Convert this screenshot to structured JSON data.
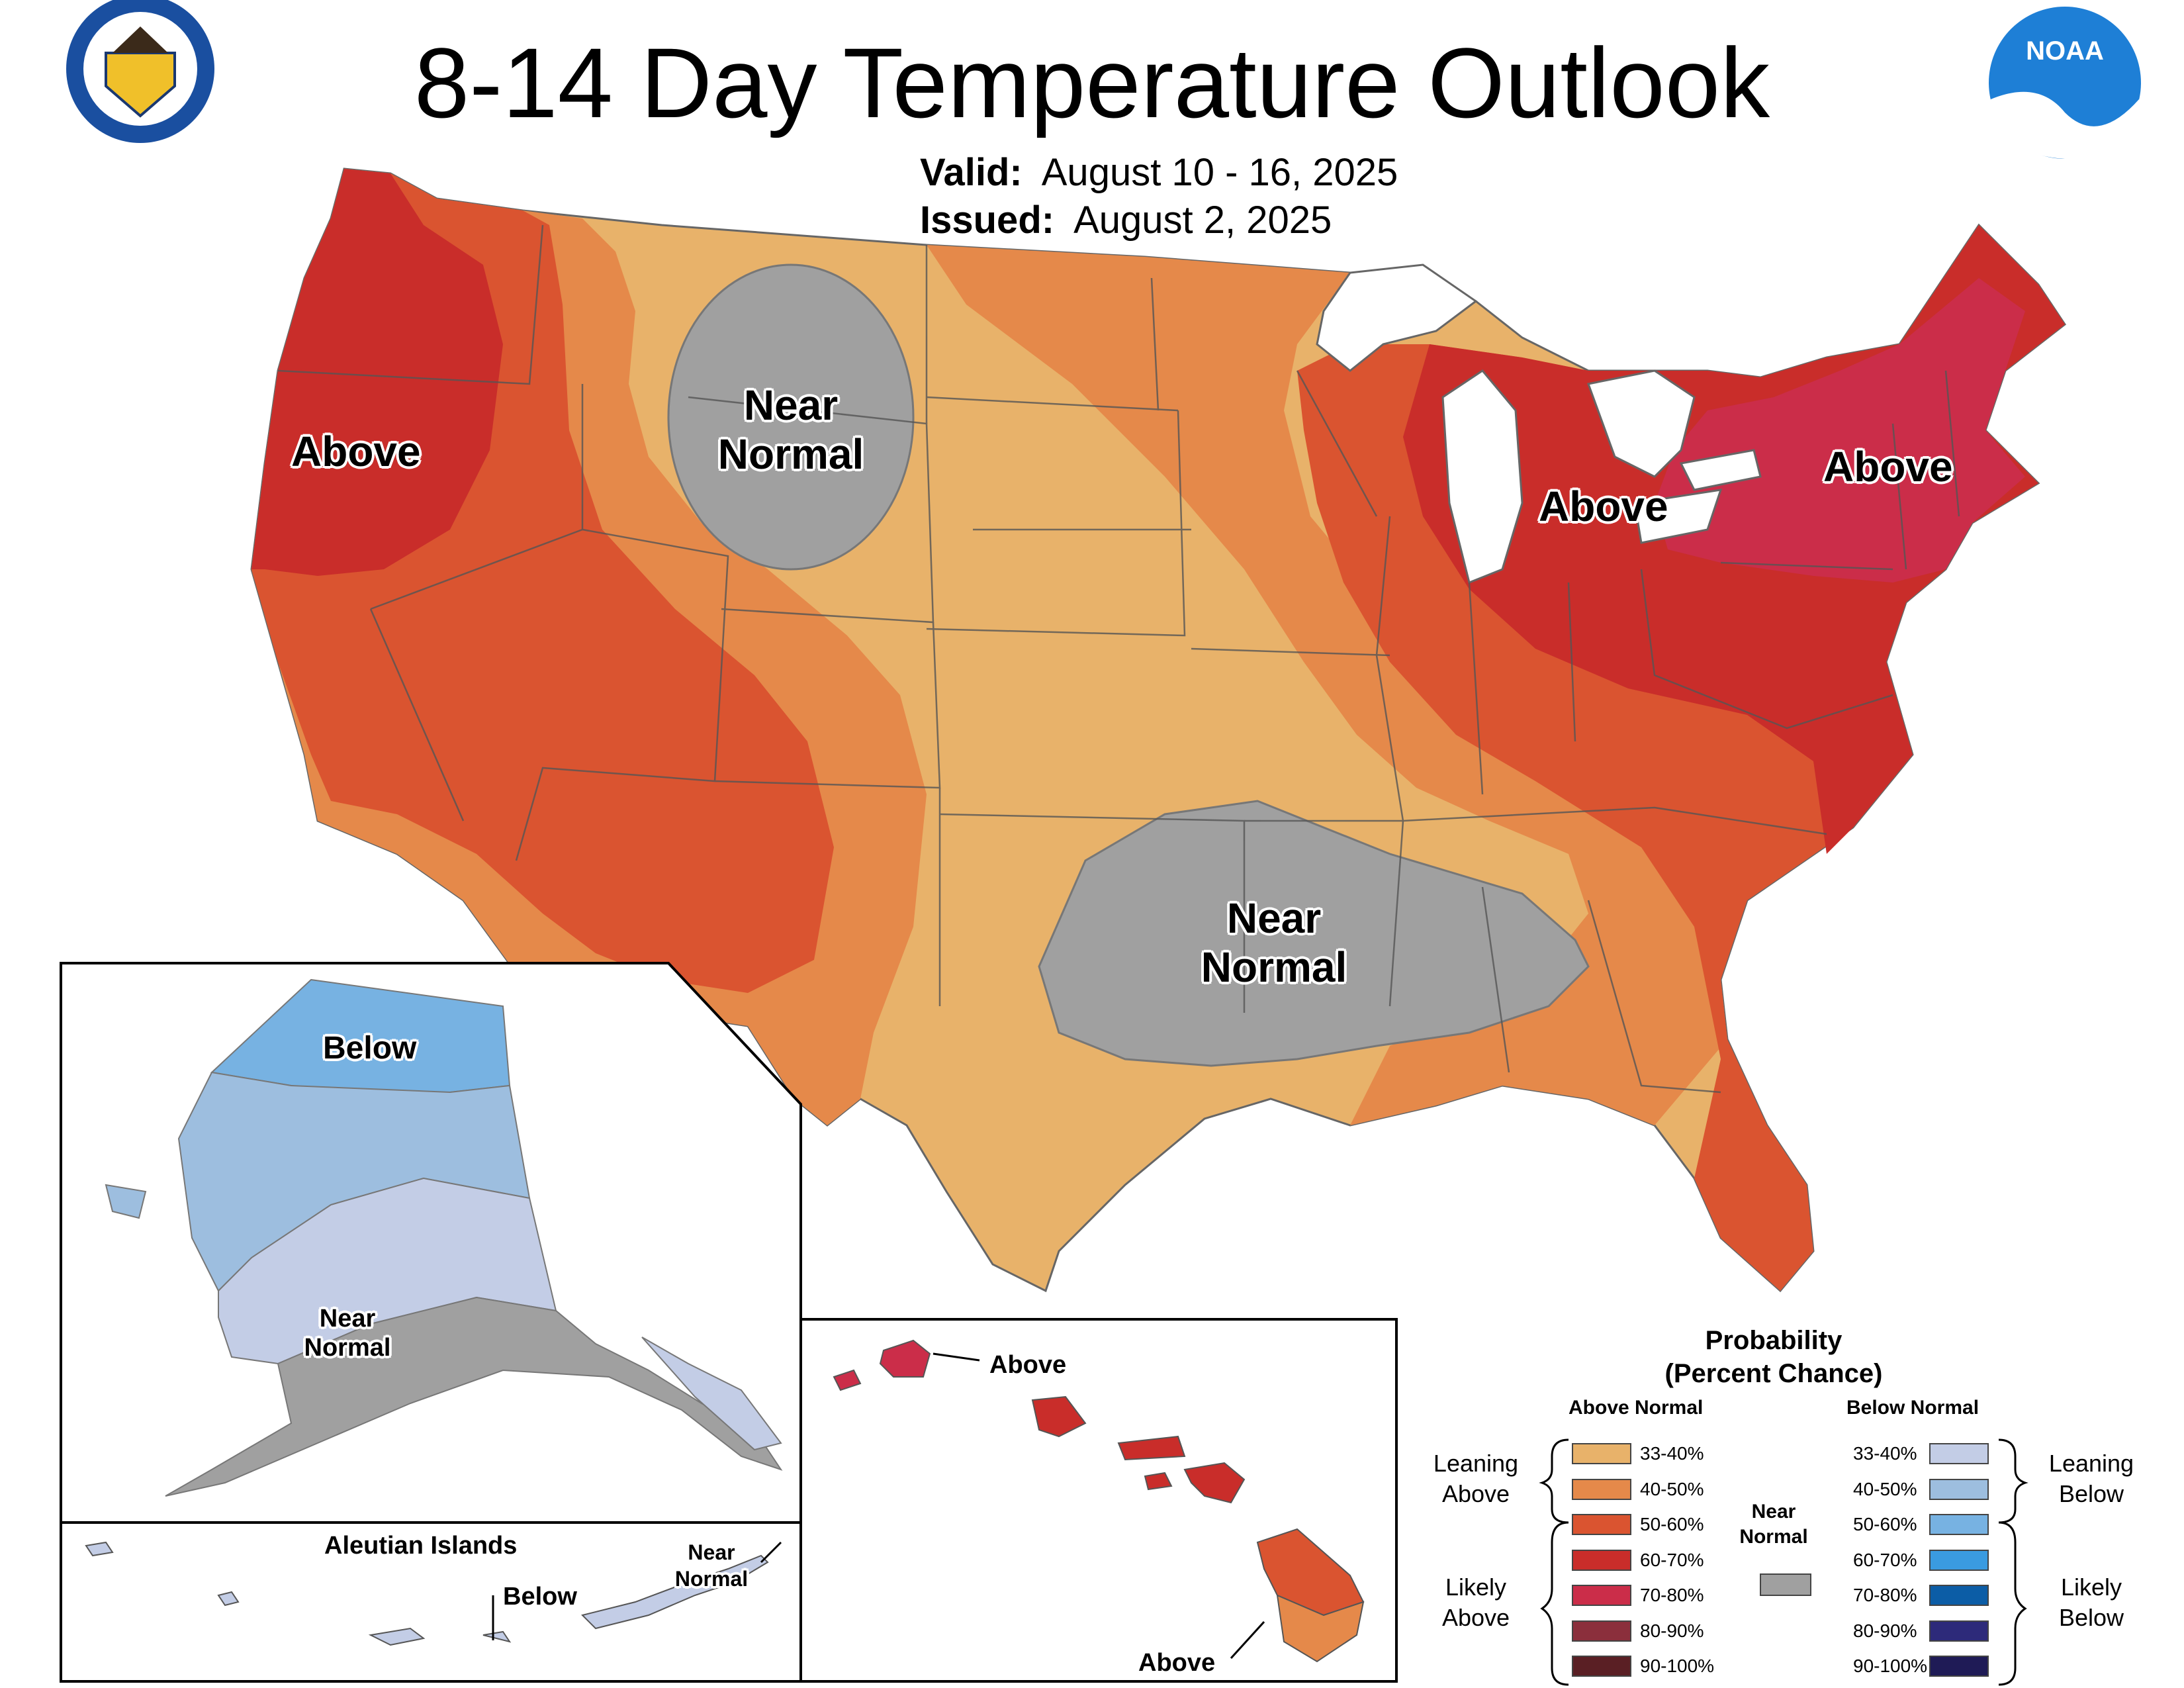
{
  "title": "8-14 Day Temperature Outlook",
  "valid_label": "Valid:",
  "valid_dates": "August 10 - 16, 2025",
  "issued_label": "Issued:",
  "issued_date": "August 2, 2025",
  "logos": {
    "left": "department-of-commerce-seal",
    "right": "noaa-logo"
  },
  "map_labels": {
    "west_above": "Above",
    "mountain_near": [
      "Near",
      "Normal"
    ],
    "south_near": [
      "Near",
      "Normal"
    ],
    "michigan_above": "Above",
    "northeast_above": "Above",
    "alaska_below": "Below",
    "alaska_near": [
      "Near",
      "Normal"
    ],
    "aleutian_title": "Aleutian Islands",
    "aleutian_below": "Below",
    "aleutian_near": [
      "Near",
      "Normal"
    ],
    "hawaii_above_top": "Above",
    "hawaii_above_bottom": "Above"
  },
  "legend": {
    "title": [
      "Probability",
      "(Percent Chance)"
    ],
    "above_head": "Above Normal",
    "below_head": "Below Normal",
    "near_head": [
      "Near",
      "Normal"
    ],
    "leaning_above": [
      "Leaning",
      "Above"
    ],
    "likely_above": [
      "Likely",
      "Above"
    ],
    "leaning_below": [
      "Leaning",
      "Below"
    ],
    "likely_below": [
      "Likely",
      "Below"
    ],
    "above": [
      {
        "label": "33-40%",
        "color": "#e8b26a"
      },
      {
        "label": "40-50%",
        "color": "#e5894a"
      },
      {
        "label": "50-60%",
        "color": "#da5430"
      },
      {
        "label": "60-70%",
        "color": "#c92d2a"
      },
      {
        "label": "70-80%",
        "color": "#cb2d49"
      },
      {
        "label": "80-90%",
        "color": "#8b2f3c"
      },
      {
        "label": "90-100%",
        "color": "#5a1f24"
      }
    ],
    "below": [
      {
        "label": "33-40%",
        "color": "#c3cde6"
      },
      {
        "label": "40-50%",
        "color": "#9dbedf"
      },
      {
        "label": "50-60%",
        "color": "#77b2e2"
      },
      {
        "label": "60-70%",
        "color": "#3a9be0"
      },
      {
        "label": "70-80%",
        "color": "#0c5da6"
      },
      {
        "label": "80-90%",
        "color": "#2d2a7a"
      },
      {
        "label": "90-100%",
        "color": "#1f1b56"
      }
    ],
    "near_color": "#a0a0a0"
  }
}
